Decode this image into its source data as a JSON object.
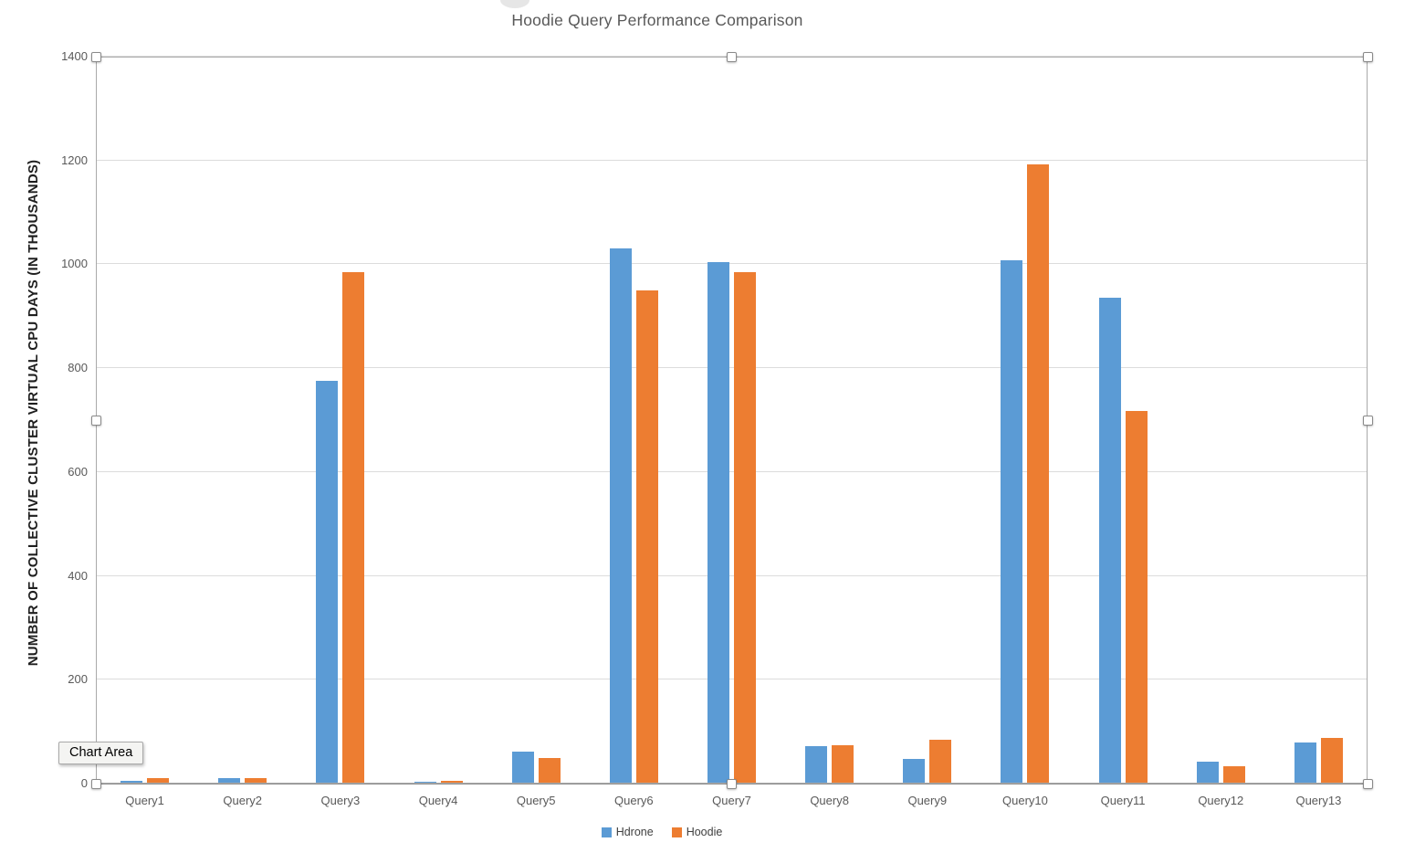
{
  "tooltip_label": "Chart Area",
  "chart_data": {
    "type": "bar",
    "title": "Hoodie Query Performance Comparison",
    "xlabel": "",
    "ylabel": "NUMBER OF COLLECTIVE CLUSTER VIRTUAL CPU DAYS (IN THOUSANDS)",
    "ylim": [
      0,
      1400
    ],
    "ytick_step": 200,
    "grid": true,
    "legend_position": "bottom",
    "categories": [
      "Query1",
      "Query2",
      "Query3",
      "Query4",
      "Query5",
      "Query6",
      "Query7",
      "Query8",
      "Query9",
      "Query10",
      "Query11",
      "Query12",
      "Query13"
    ],
    "series": [
      {
        "name": "Hdrone",
        "color": "#5B9BD5",
        "values": [
          5,
          10,
          775,
          4,
          62,
          1030,
          1005,
          73,
          48,
          1008,
          935,
          42,
          80
        ]
      },
      {
        "name": "Hoodie",
        "color": "#ED7D31",
        "values": [
          10,
          10,
          985,
          5,
          50,
          950,
          985,
          74,
          85,
          1192,
          718,
          33,
          88
        ]
      }
    ]
  }
}
